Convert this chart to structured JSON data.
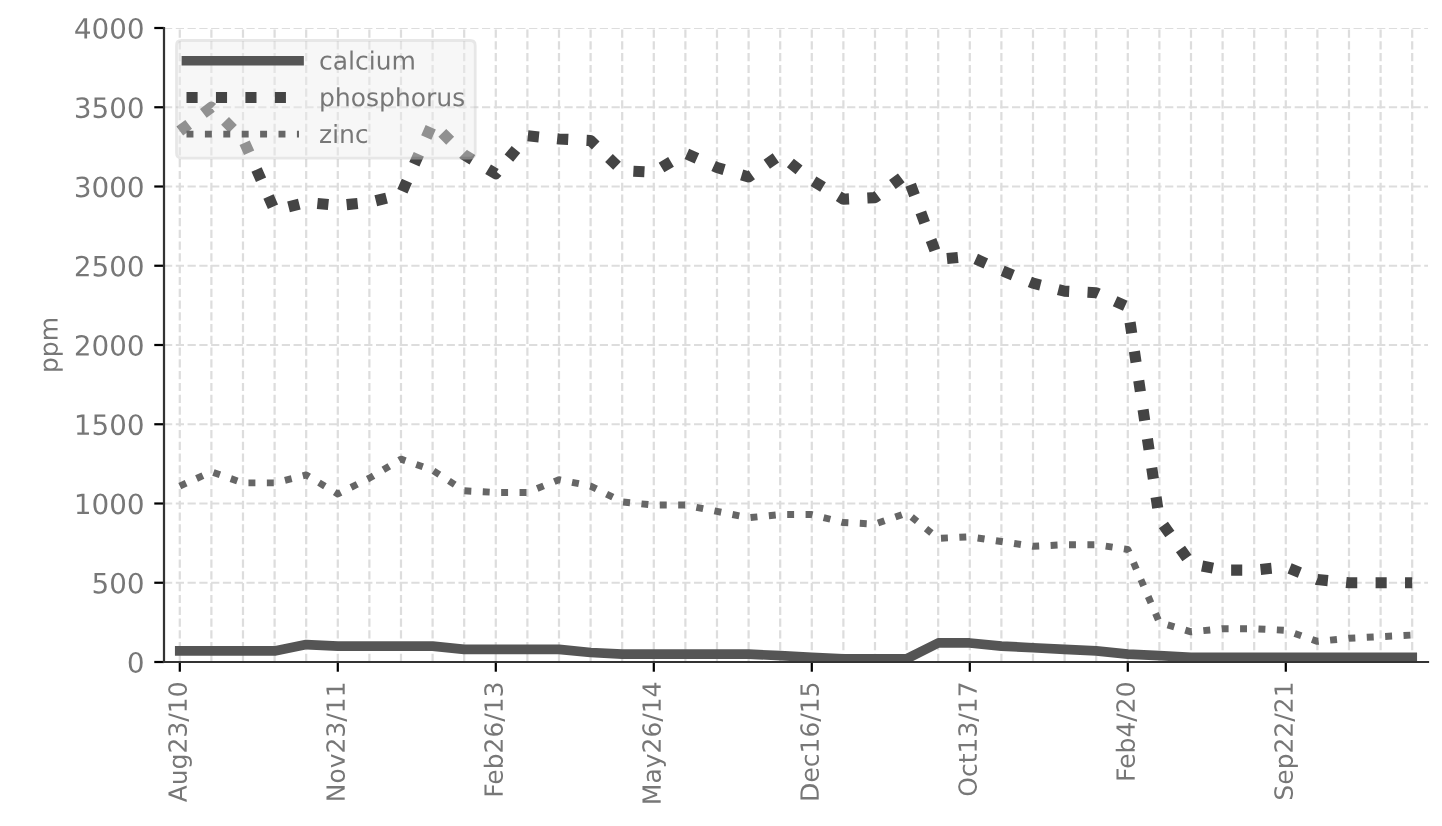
{
  "chart_data": {
    "type": "line",
    "ylabel": "ppm",
    "categories": [
      "Aug23/10",
      null,
      null,
      null,
      null,
      "Nov23/11",
      null,
      null,
      null,
      null,
      "Feb26/13",
      null,
      null,
      null,
      null,
      "May26/14",
      null,
      null,
      null,
      null,
      "Dec16/15",
      null,
      null,
      null,
      null,
      "Oct13/17",
      null,
      null,
      null,
      null,
      "Feb4/20",
      null,
      null,
      null,
      null,
      "Sep22/21",
      null,
      null,
      null,
      null
    ],
    "series": [
      {
        "name": "calcium",
        "color": "#555555",
        "line_style": "solid",
        "values": [
          70,
          70,
          70,
          70,
          110,
          100,
          100,
          100,
          100,
          80,
          80,
          80,
          80,
          60,
          50,
          50,
          50,
          50,
          50,
          40,
          30,
          20,
          20,
          20,
          120,
          120,
          100,
          90,
          80,
          70,
          50,
          40,
          30,
          30,
          30,
          30,
          30,
          30,
          30,
          30
        ]
      },
      {
        "name": "phosphorus",
        "color": "#444444",
        "line_style": "dotted",
        "values": [
          3350,
          3500,
          3300,
          2850,
          2900,
          2880,
          2900,
          2950,
          3400,
          3200,
          3080,
          3320,
          3300,
          3290,
          3100,
          3090,
          3210,
          3120,
          3060,
          3200,
          3040,
          2920,
          2930,
          3080,
          2540,
          2560,
          2470,
          2390,
          2340,
          2330,
          2240,
          900,
          620,
          580,
          580,
          600,
          520,
          500,
          500,
          500
        ]
      },
      {
        "name": "zinc",
        "color": "#666666",
        "line_style": "dotted",
        "values": [
          1110,
          1200,
          1130,
          1130,
          1180,
          1060,
          1160,
          1280,
          1210,
          1080,
          1070,
          1070,
          1150,
          1110,
          1010,
          990,
          990,
          950,
          910,
          930,
          930,
          880,
          870,
          940,
          780,
          790,
          760,
          730,
          740,
          740,
          710,
          250,
          190,
          210,
          210,
          200,
          130,
          150,
          160,
          170
        ]
      }
    ],
    "ylim": [
      0,
      4000
    ],
    "yticks": [
      0,
      500,
      1000,
      1500,
      2000,
      2500,
      3000,
      3500,
      4000
    ],
    "grid": true,
    "legend": "top left"
  }
}
